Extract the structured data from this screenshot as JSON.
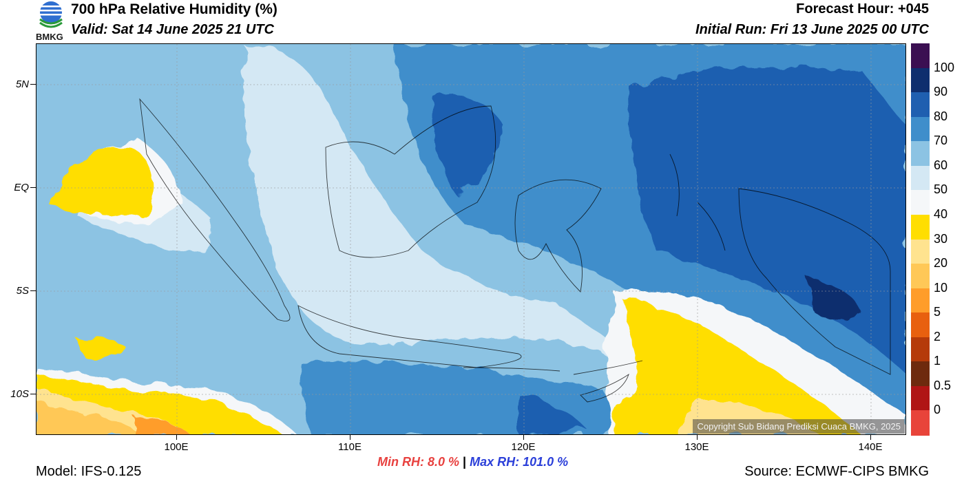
{
  "header": {
    "title": "700 hPa Relative Humidity (%)",
    "valid": "Valid: Sat 14 June 2025 21 UTC",
    "forecast_hour": "Forecast Hour: +045",
    "initial_run": "Initial Run: Fri 13 June 2025 00 UTC",
    "logo_text": "BMKG"
  },
  "map": {
    "lat_labels": [
      "5N",
      "EQ",
      "5S",
      "10S"
    ],
    "lon_labels": [
      "100E",
      "110E",
      "120E",
      "130E",
      "140E"
    ],
    "copyright": "Copyright Sub Bidang Prediksi Cuaca BMKG, 2025"
  },
  "colorbar": {
    "labels": [
      "100",
      "90",
      "80",
      "70",
      "60",
      "50",
      "40",
      "30",
      "20",
      "10",
      "5",
      "2",
      "1",
      "0.5",
      "0"
    ],
    "colors": [
      "#3b0f52",
      "#0e2e6e",
      "#1f5fb0",
      "#3f8ecb",
      "#8cc3e3",
      "#d4e8f4",
      "#f5f7f9",
      "#ffde00",
      "#ffe38f",
      "#ffc857",
      "#ff9d2a",
      "#e8600f",
      "#b53a0a",
      "#6e2a0e",
      "#b01515",
      "#e8443a"
    ]
  },
  "stats": {
    "min_rh": "Min RH:   8.0 %",
    "separator": "|",
    "max_rh": "Max RH: 101.0 %"
  },
  "footer": {
    "model": "Model: IFS-0.125",
    "source": "Source: ECMWF-CIPS BMKG"
  }
}
